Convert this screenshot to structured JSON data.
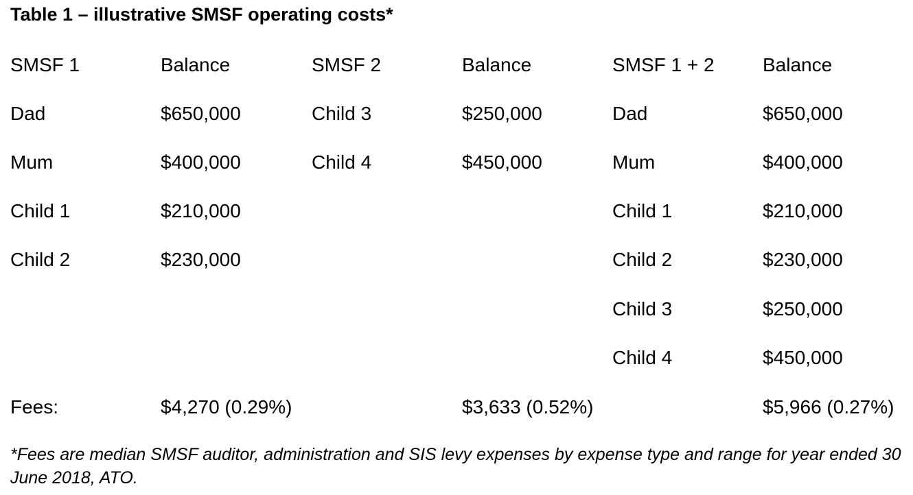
{
  "title": "Table 1 – illustrative SMSF operating costs*",
  "table": {
    "headers": [
      "SMSF 1",
      "Balance",
      "SMSF 2",
      "Balance",
      "SMSF 1 + 2",
      "Balance"
    ],
    "rows": [
      [
        "Dad",
        "$650,000",
        "Child 3",
        "$250,000",
        "Dad",
        "$650,000"
      ],
      [
        "Mum",
        "$400,000",
        "Child 4",
        "$450,000",
        "Mum",
        "$400,000"
      ],
      [
        "Child 1",
        "$210,000",
        "",
        "",
        "Child 1",
        "$210,000"
      ],
      [
        "Child 2",
        "$230,000",
        "",
        "",
        "Child 2",
        "$230,000"
      ],
      [
        "",
        "",
        "",
        "",
        "Child 3",
        "$250,000"
      ],
      [
        "",
        "",
        "",
        "",
        "Child 4",
        "$450,000"
      ]
    ],
    "fees": {
      "label": "Fees:",
      "smsf1": "$4,270 (0.29%)",
      "smsf2": "$3,633 (0.52%)",
      "combined": "$5,966 (0.27%)"
    }
  },
  "footnote": "*Fees are median SMSF auditor, administration and SIS levy expenses by expense type and range for year ended 30 June 2018, ATO."
}
